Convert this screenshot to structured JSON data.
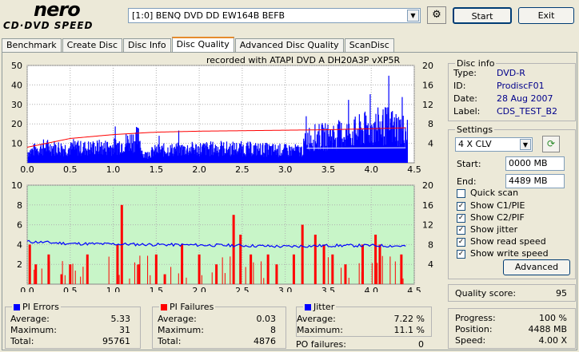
{
  "app": {
    "logo_line1": "nero",
    "logo_line2": "CD·DVD SPEED"
  },
  "toolbar": {
    "drive": "[1:0]  BENQ DVD DD EW164B BEFB",
    "start_label": "Start",
    "exit_label": "Exit"
  },
  "tabs": [
    "Benchmark",
    "Create Disc",
    "Disc Info",
    "Disc Quality",
    "Advanced Disc Quality",
    "ScanDisc"
  ],
  "active_tab": "Disc Quality",
  "chart_header": "recorded with ATAPI   DVD  A   DH20A3P    vXP5R",
  "disc_info": {
    "title": "Disc info",
    "type_label": "Type:",
    "type": "DVD-R",
    "id_label": "ID:",
    "id": "ProdiscF01",
    "date_label": "Date:",
    "date": "28 Aug 2007",
    "label_label": "Label:",
    "label": "CDS_TEST_B2"
  },
  "settings": {
    "title": "Settings",
    "speed": "4 X CLV",
    "start_label": "Start:",
    "start": "0000 MB",
    "end_label": "End:",
    "end": "4489 MB",
    "quick_scan": "Quick scan",
    "show_c1": "Show C1/PIE",
    "show_c2": "Show C2/PIF",
    "show_jitter": "Show jitter",
    "show_read": "Show read speed",
    "show_write": "Show write speed",
    "advanced": "Advanced"
  },
  "quality": {
    "label": "Quality score:",
    "value": "95"
  },
  "progress": {
    "progress_label": "Progress:",
    "progress": "100 %",
    "position_label": "Position:",
    "position": "4488 MB",
    "speed_label": "Speed:",
    "speed": "4.00 X"
  },
  "pi_errors": {
    "title": "PI Errors",
    "avg_label": "Average:",
    "avg": "5.33",
    "max_label": "Maximum:",
    "max": "31",
    "total_label": "Total:",
    "total": "95761",
    "color": "#0000ff"
  },
  "pi_failures": {
    "title": "PI Failures",
    "avg_label": "Average:",
    "avg": "0.03",
    "max_label": "Maximum:",
    "max": "8",
    "total_label": "Total:",
    "total": "4876",
    "color": "#ff0000"
  },
  "jitter": {
    "title": "Jitter",
    "avg_label": "Average:",
    "avg": "7.22 %",
    "max_label": "Maximum:",
    "max": "11.1 %",
    "color": "#0000ff"
  },
  "po_failures": {
    "label": "PO failures:",
    "value": "0"
  },
  "chart_data": [
    {
      "type": "area",
      "xlim": [
        0,
        4.5
      ],
      "ylim_left": [
        0,
        50
      ],
      "ylim_right": [
        0,
        20
      ],
      "x_ticks": [
        "0.0",
        "0.5",
        "1.0",
        "1.5",
        "2.0",
        "2.5",
        "3.0",
        "3.5",
        "4.0",
        "4.5"
      ],
      "y_ticks_left": [
        "10",
        "20",
        "30",
        "40",
        "50"
      ],
      "y_ticks_right": [
        "4",
        "8",
        "12",
        "16",
        "20"
      ],
      "series": [
        {
          "values_x": [
            0,
            0.2,
            0.5,
            1.0,
            1.3,
            1.35,
            1.5,
            2.0,
            2.5,
            3.0,
            3.2,
            3.25,
            3.5,
            3.8,
            4.0,
            4.2,
            4.4
          ],
          "values_y": [
            6,
            9,
            8,
            9,
            14,
            4,
            7,
            8,
            8,
            7,
            7,
            14,
            15,
            17,
            20,
            21,
            18
          ],
          "color": "#0000ff"
        },
        {
          "values_x": [
            0,
            0.5,
            1.0,
            1.5,
            2.0,
            2.5,
            3.0,
            3.5,
            4.0,
            4.4
          ],
          "values_y": [
            3.2,
            5.0,
            5.8,
            6.3,
            6.5,
            6.6,
            6.7,
            6.8,
            7.0,
            7.2
          ],
          "color": "#ff0000"
        },
        {
          "values_x": [
            3.25,
            4.4
          ],
          "values_y": [
            3.0,
            3.1
          ],
          "color": "#ffffff"
        }
      ]
    },
    {
      "type": "bar",
      "xlim": [
        0,
        4.5
      ],
      "ylim_left": [
        0,
        10
      ],
      "ylim_right": [
        0,
        20
      ],
      "x_ticks": [
        "0.0",
        "0.5",
        "1.0",
        "1.5",
        "2.0",
        "2.5",
        "3.0",
        "3.5",
        "4.0",
        "4.5"
      ],
      "y_ticks_left": [
        "2",
        "4",
        "6",
        "8",
        "10"
      ],
      "y_ticks_right": [
        "4",
        "8",
        "12",
        "16",
        "20"
      ],
      "series": [
        {
          "values_x": [
            0.03,
            0.1,
            0.25,
            0.4,
            0.5,
            0.7,
            1.05,
            1.1,
            1.3,
            1.5,
            1.6,
            1.8,
            2.0,
            2.2,
            2.4,
            2.48,
            2.6,
            2.8,
            2.9,
            3.1,
            3.2,
            3.35,
            3.45,
            3.55,
            3.7,
            3.9,
            4.05,
            4.1,
            4.35
          ],
          "values_y": [
            4,
            2,
            3,
            1,
            2,
            3,
            4,
            8,
            2,
            3,
            1,
            4,
            3,
            2,
            7,
            5,
            3,
            3,
            2,
            3,
            6,
            5,
            4,
            3,
            2,
            4,
            5,
            4,
            3
          ],
          "color": "#ff0000"
        },
        {
          "values_x": [
            0,
            0.5,
            1.0,
            1.5,
            2.0,
            2.5,
            3.0,
            3.5,
            4.0,
            4.4
          ],
          "values_y": [
            8.6,
            8.2,
            8.1,
            8.0,
            7.9,
            7.8,
            7.6,
            7.8,
            7.8,
            7.7
          ],
          "color": "#0000ff"
        }
      ]
    }
  ]
}
